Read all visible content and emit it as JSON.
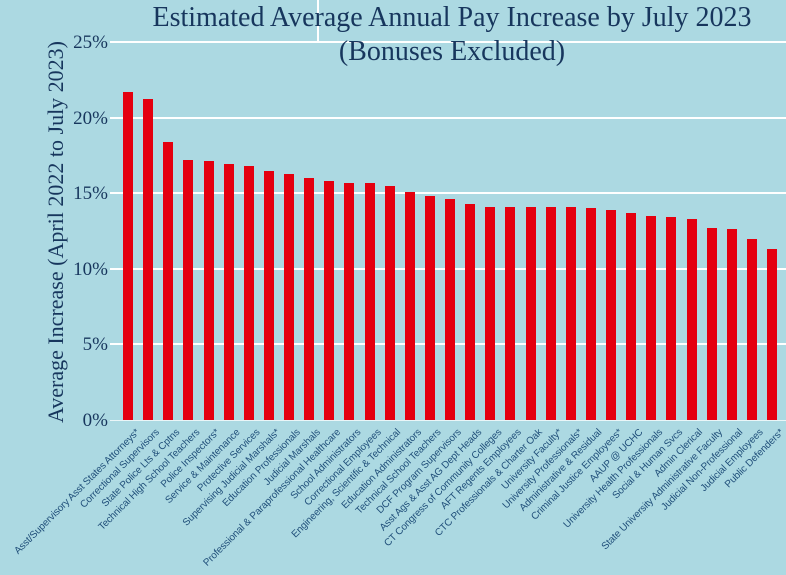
{
  "chart_data": {
    "type": "bar",
    "title_line1": "Estimated Average Annual Pay Increase by July 2023",
    "title_line2": "(Bonuses Excluded)",
    "ylabel": "Average Increase (April 2022 to July 2023)",
    "ylim": [
      0,
      25
    ],
    "yticks": [
      0,
      5,
      10,
      15,
      20,
      25
    ],
    "ytick_labels": [
      "0%",
      "5%",
      "10%",
      "15%",
      "20%",
      "25%"
    ],
    "grid": true,
    "legend_position": "none",
    "colors": {
      "background": "#acd9e2",
      "bar": "#e4000f",
      "gridline": "#ffffff",
      "title_text": "#17365d",
      "axis_text": "#17365d",
      "category_text": "#1f4e79"
    },
    "categories": [
      "Asst/Supervisory Asst States Attorneys*",
      "Correctional Supervisors",
      "State Police Lts & Cptns",
      "Technical High School Teachers",
      "Police Inspectors*",
      "Service & Maintenance",
      "Protective Services",
      "Supervising Judicial Marshals*",
      "Education Professionals",
      "Judicial Marshals",
      "Professional & Paraprofessional Healthcare",
      "School Administrators",
      "Correctional Employees",
      "Engineering, Scientific & Technical",
      "Education Administrators",
      "Technical School Teachers",
      "DCF Program Supervisors",
      "Asst Ags & Asst AG Dept Heads",
      "CT Congress of Community Colleges",
      "AFT Regents Employees",
      "CTC Professionals & Charter Oak",
      "University Faculty*",
      "University Professionals*",
      "Administrative & Residual",
      "Criminal Justice Employees*",
      "AAUP @ UCHC",
      "University Health Professionals",
      "Social & Human Svcs",
      "Admin Clerical",
      "State University Administrative Faculty",
      "Judicial Non-Professional",
      "Judicial Employees",
      "Public Defenders*"
    ],
    "values": [
      21.7,
      21.2,
      18.4,
      17.2,
      17.1,
      16.9,
      16.8,
      16.5,
      16.3,
      16.0,
      15.8,
      15.7,
      15.7,
      15.5,
      15.1,
      14.8,
      14.6,
      14.3,
      14.1,
      14.1,
      14.1,
      14.1,
      14.1,
      14.0,
      13.9,
      13.7,
      13.5,
      13.4,
      13.3,
      12.7,
      12.6,
      12.0,
      11.3
    ]
  }
}
